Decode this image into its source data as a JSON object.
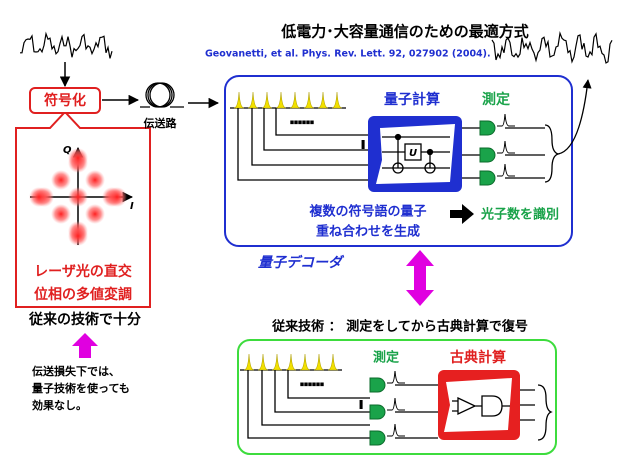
{
  "header": {
    "title": "低電力･大容量通信のための最適方式",
    "citation": "Geovanetti, et al. Phys. Rev. Lett. 92, 027902 (2004)."
  },
  "encoder": {
    "label": "符号化",
    "axis_q": "Q",
    "axis_i": "I",
    "description": [
      "レーザ光の直交",
      "位相の多値変調"
    ]
  },
  "channel": {
    "label": "伝送路"
  },
  "quantum_decoder": {
    "title": "量子デコーダ",
    "computation": "量子計算",
    "gate": "U",
    "measurement": "測定",
    "description": [
      "複数の符号語の量子",
      "重ね合わせを生成"
    ],
    "result": "光子数を識別"
  },
  "conventional": {
    "sufficient": "従来の技術で十分",
    "note": [
      "伝送損失下では、",
      "量子技術を使っても",
      "効果なし。"
    ],
    "heading": "従来技術 ： 測定をしてから古典計算で復号",
    "measurement": "測定",
    "computation": "古典計算"
  }
}
